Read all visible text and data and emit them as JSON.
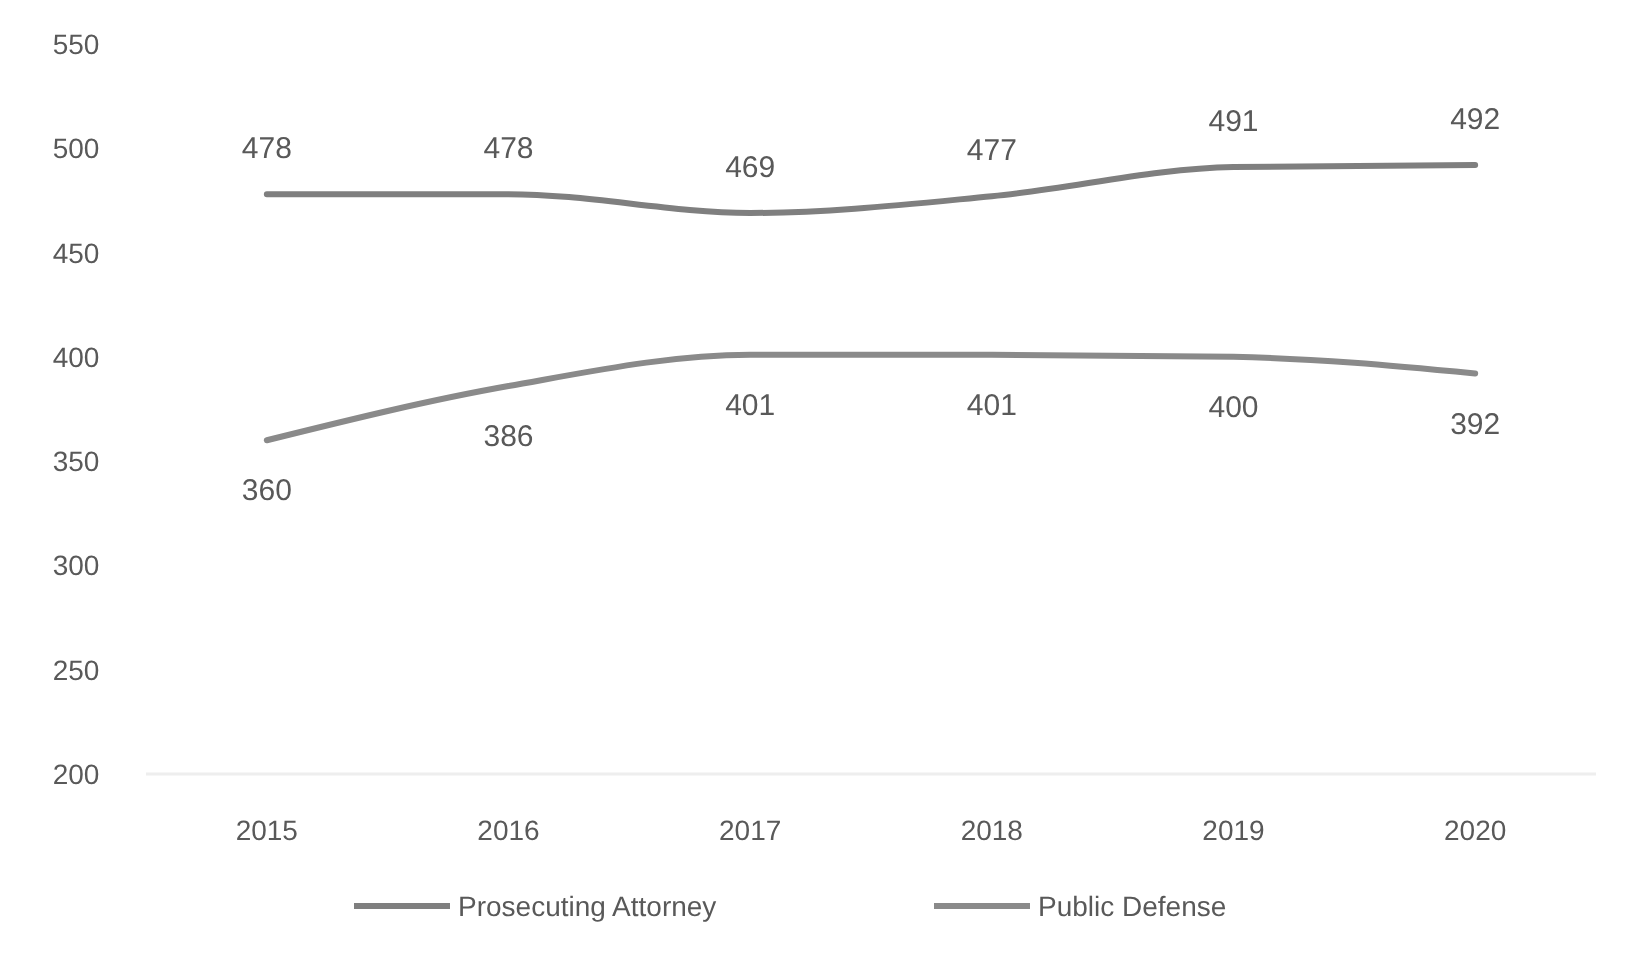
{
  "chart_data": {
    "type": "line",
    "categories": [
      "2015",
      "2016",
      "2017",
      "2018",
      "2019",
      "2020"
    ],
    "series": [
      {
        "name": "Prosecuting Attorney",
        "color": "#7f7f7f",
        "values": [
          478,
          478,
          469,
          477,
          491,
          492
        ]
      },
      {
        "name": "Public Defense",
        "color": "#8a8a8a",
        "values": [
          360,
          386,
          401,
          401,
          400,
          392
        ]
      }
    ],
    "ylim": [
      200,
      550
    ],
    "yticks": [
      200,
      250,
      300,
      350,
      400,
      450,
      500,
      550
    ],
    "grid": false,
    "legend": "bottom",
    "data_labels": true,
    "marker": "none",
    "line_style": "solid"
  }
}
